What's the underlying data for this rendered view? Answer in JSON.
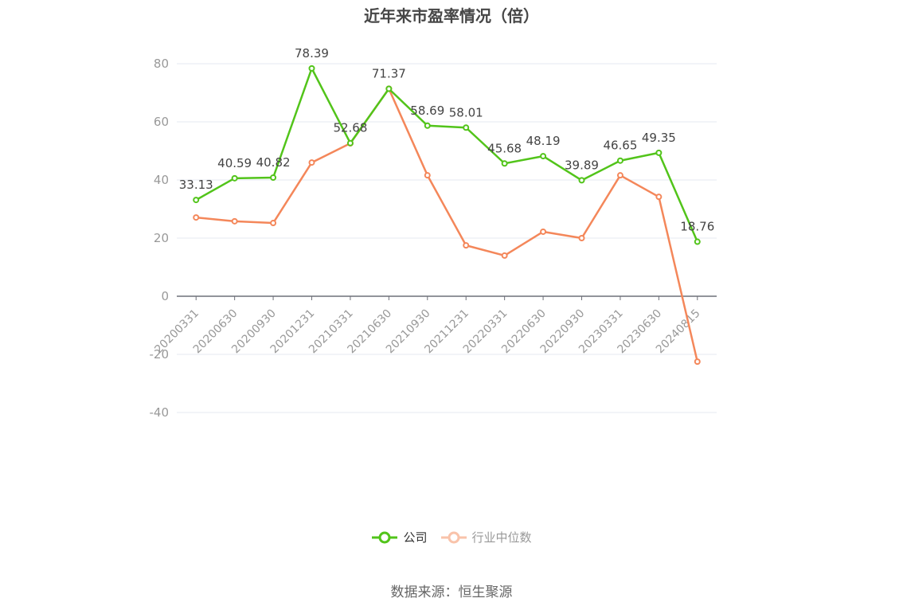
{
  "title": "近年来市盈率情况（倍）",
  "source": "数据来源：恒生聚源",
  "legend": [
    {
      "label": "公司",
      "color": "#52c41a",
      "text_color": "#333333"
    },
    {
      "label": "行业中位数",
      "color": "#f4a582",
      "text_color": "#999999"
    }
  ],
  "chart_data": {
    "type": "line",
    "title": "近年来市盈率情况（倍）",
    "xlabel": "",
    "ylabel": "",
    "ylim": [
      -40,
      80
    ],
    "yticks": [
      -40,
      -20,
      0,
      20,
      40,
      60,
      80
    ],
    "grid": true,
    "legend_position": "bottom",
    "categories": [
      "20200331",
      "20200630",
      "20200930",
      "20201231",
      "20210331",
      "20210630",
      "20210930",
      "20211231",
      "20220331",
      "20220630",
      "20220930",
      "20230331",
      "20230630",
      "20240815"
    ],
    "series": [
      {
        "name": "公司",
        "color": "#52c41a",
        "show_labels": true,
        "values": [
          33.13,
          40.59,
          40.82,
          78.39,
          52.68,
          71.37,
          58.69,
          58.01,
          45.68,
          48.19,
          39.89,
          46.65,
          49.35,
          18.76
        ]
      },
      {
        "name": "行业中位数",
        "color": "#f4875a",
        "show_labels": false,
        "values": [
          27.1,
          25.8,
          25.2,
          46.0,
          52.6,
          71.4,
          41.6,
          17.5,
          14.0,
          22.2,
          20.0,
          41.6,
          34.2,
          -22.5
        ]
      }
    ]
  }
}
